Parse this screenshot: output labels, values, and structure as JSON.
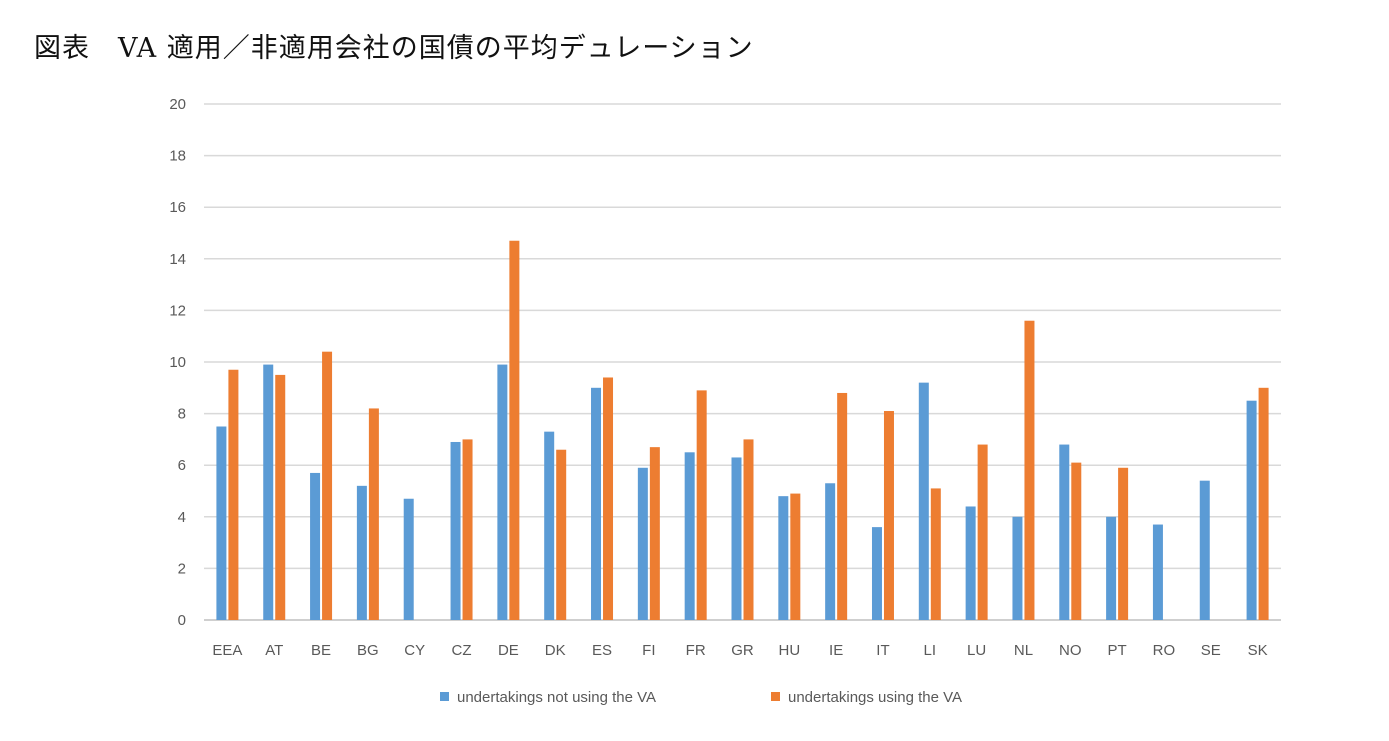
{
  "title": "図表　VA 適用／非適用会社の国債の平均デュレーション",
  "chart_data": {
    "type": "bar",
    "categories": [
      "EEA",
      "AT",
      "BE",
      "BG",
      "CY",
      "CZ",
      "DE",
      "DK",
      "ES",
      "FI",
      "FR",
      "GR",
      "HU",
      "IE",
      "IT",
      "LI",
      "LU",
      "NL",
      "NO",
      "PT",
      "RO",
      "SE",
      "SK"
    ],
    "series": [
      {
        "name": "undertakings not using the VA",
        "color": "#5B9BD5",
        "values": [
          7.5,
          9.9,
          5.7,
          5.2,
          4.7,
          6.9,
          9.9,
          7.3,
          9.0,
          5.9,
          6.5,
          6.3,
          4.8,
          5.3,
          3.6,
          9.2,
          4.4,
          4.0,
          6.8,
          4.0,
          3.7,
          5.4,
          8.5
        ]
      },
      {
        "name": "undertakings using the VA",
        "color": "#ED7D31",
        "values": [
          9.7,
          9.5,
          10.4,
          8.2,
          null,
          7.0,
          14.7,
          6.6,
          9.4,
          6.7,
          8.9,
          7.0,
          4.9,
          8.8,
          8.1,
          5.1,
          6.8,
          11.6,
          6.1,
          5.9,
          null,
          null,
          9.0
        ]
      }
    ],
    "ylim": [
      0,
      20
    ],
    "yticks": [
      "0",
      "2",
      "4",
      "6",
      "8",
      "10",
      "12",
      "14",
      "16",
      "18",
      "20"
    ],
    "grid": true,
    "legend_position": "bottom"
  }
}
